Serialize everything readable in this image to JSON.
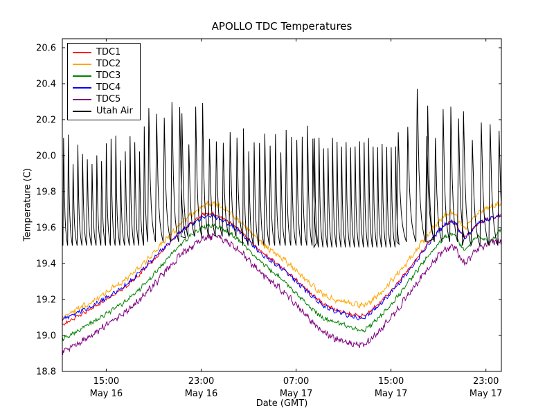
{
  "chart_data": {
    "type": "line",
    "title": "APOLLO TDC Temperatures",
    "xlabel": "Date (GMT)",
    "ylabel": "Temperature (C)",
    "x_unit": "hours since May 16 00:00 GMT",
    "x_range_hours": [
      11.3,
      48.3
    ],
    "ylim": [
      18.8,
      20.65
    ],
    "grid": false,
    "legend_position": "upper left",
    "axis_color": "#000000",
    "background_color": "#ffffff",
    "yticks": [
      {
        "label": "18.8",
        "value": 18.8
      },
      {
        "label": "19.0",
        "value": 19.0
      },
      {
        "label": "19.2",
        "value": 19.2
      },
      {
        "label": "19.4",
        "value": 19.4
      },
      {
        "label": "19.6",
        "value": 19.6
      },
      {
        "label": "19.8",
        "value": 19.8
      },
      {
        "label": "20.0",
        "value": 20.0
      },
      {
        "label": "20.2",
        "value": 20.2
      },
      {
        "label": "20.4",
        "value": 20.4
      },
      {
        "label": "20.6",
        "value": 20.6
      }
    ],
    "xticks": [
      {
        "time": "15:00",
        "date": "May 16",
        "value": 15
      },
      {
        "time": "23:00",
        "date": "May 16",
        "value": 23
      },
      {
        "time": "07:00",
        "date": "May 17",
        "value": 31
      },
      {
        "time": "15:00",
        "date": "May 17",
        "value": 39
      },
      {
        "time": "23:00",
        "date": "May 17",
        "value": 47
      }
    ],
    "series": [
      {
        "name": "TDC1",
        "color": "#ff0000",
        "noise": 0.008,
        "points": [
          [
            11.3,
            19.06
          ],
          [
            13,
            19.12
          ],
          [
            15,
            19.2
          ],
          [
            17,
            19.29
          ],
          [
            19,
            19.42
          ],
          [
            21,
            19.56
          ],
          [
            22.5,
            19.64
          ],
          [
            23.5,
            19.68
          ],
          [
            24.5,
            19.66
          ],
          [
            26,
            19.6
          ],
          [
            28,
            19.47
          ],
          [
            30,
            19.37
          ],
          [
            32,
            19.25
          ],
          [
            33.5,
            19.17
          ],
          [
            35,
            19.13
          ],
          [
            36.5,
            19.11
          ],
          [
            37.5,
            19.15
          ],
          [
            39,
            19.25
          ],
          [
            40.5,
            19.37
          ],
          [
            42,
            19.5
          ],
          [
            43.3,
            19.6
          ],
          [
            44.3,
            19.63
          ],
          [
            45.2,
            19.55
          ],
          [
            46.3,
            19.62
          ],
          [
            47.3,
            19.65
          ],
          [
            48.3,
            19.67
          ]
        ]
      },
      {
        "name": "TDC2",
        "color": "#ffa500",
        "noise": 0.013,
        "points": [
          [
            11.3,
            19.1
          ],
          [
            13,
            19.16
          ],
          [
            15,
            19.24
          ],
          [
            17,
            19.33
          ],
          [
            19,
            19.46
          ],
          [
            21,
            19.6
          ],
          [
            22.5,
            19.69
          ],
          [
            23.5,
            19.73
          ],
          [
            24.5,
            19.72
          ],
          [
            26,
            19.65
          ],
          [
            28,
            19.52
          ],
          [
            30,
            19.42
          ],
          [
            32,
            19.3
          ],
          [
            33.5,
            19.22
          ],
          [
            35,
            19.19
          ],
          [
            36.5,
            19.17
          ],
          [
            37.5,
            19.2
          ],
          [
            39,
            19.3
          ],
          [
            40.5,
            19.42
          ],
          [
            42,
            19.55
          ],
          [
            43.3,
            19.65
          ],
          [
            44.3,
            19.68
          ],
          [
            45.2,
            19.6
          ],
          [
            46.3,
            19.68
          ],
          [
            47.3,
            19.71
          ],
          [
            48.3,
            19.74
          ]
        ]
      },
      {
        "name": "TDC3",
        "color": "#008000",
        "noise": 0.01,
        "points": [
          [
            11.3,
            18.98
          ],
          [
            13,
            19.04
          ],
          [
            15,
            19.12
          ],
          [
            17,
            19.21
          ],
          [
            19,
            19.34
          ],
          [
            21,
            19.49
          ],
          [
            22.5,
            19.57
          ],
          [
            23.5,
            19.61
          ],
          [
            24.5,
            19.6
          ],
          [
            26,
            19.54
          ],
          [
            28,
            19.41
          ],
          [
            30,
            19.3
          ],
          [
            32,
            19.17
          ],
          [
            33.5,
            19.09
          ],
          [
            35,
            19.06
          ],
          [
            36.5,
            19.03
          ],
          [
            37.5,
            19.07
          ],
          [
            39,
            19.17
          ],
          [
            40.5,
            19.3
          ],
          [
            42,
            19.43
          ],
          [
            43.3,
            19.53
          ],
          [
            44.3,
            19.56
          ],
          [
            45.2,
            19.48
          ],
          [
            46.3,
            19.55
          ],
          [
            47.3,
            19.52
          ],
          [
            48.3,
            19.6
          ]
        ]
      },
      {
        "name": "TDC4",
        "color": "#0000ff",
        "noise": 0.01,
        "points": [
          [
            11.3,
            19.09
          ],
          [
            13,
            19.14
          ],
          [
            15,
            19.21
          ],
          [
            17,
            19.3
          ],
          [
            19,
            19.43
          ],
          [
            21,
            19.56
          ],
          [
            22.5,
            19.63
          ],
          [
            23.5,
            19.67
          ],
          [
            24.5,
            19.65
          ],
          [
            26,
            19.59
          ],
          [
            28,
            19.46
          ],
          [
            30,
            19.36
          ],
          [
            32,
            19.24
          ],
          [
            33.5,
            19.16
          ],
          [
            35,
            19.12
          ],
          [
            36.5,
            19.1
          ],
          [
            37.5,
            19.14
          ],
          [
            39,
            19.24
          ],
          [
            40.5,
            19.36
          ],
          [
            42,
            19.49
          ],
          [
            43.3,
            19.6
          ],
          [
            44.3,
            19.63
          ],
          [
            45.2,
            19.55
          ],
          [
            46.3,
            19.62
          ],
          [
            47.3,
            19.65
          ],
          [
            48.3,
            19.67
          ]
        ]
      },
      {
        "name": "TDC5",
        "color": "#800080",
        "noise": 0.016,
        "points": [
          [
            11.3,
            18.91
          ],
          [
            13,
            18.97
          ],
          [
            15,
            19.06
          ],
          [
            17,
            19.15
          ],
          [
            19,
            19.28
          ],
          [
            21,
            19.43
          ],
          [
            22.5,
            19.51
          ],
          [
            23.5,
            19.55
          ],
          [
            24.5,
            19.54
          ],
          [
            26,
            19.48
          ],
          [
            28,
            19.35
          ],
          [
            30,
            19.24
          ],
          [
            32,
            19.1
          ],
          [
            33.5,
            19.01
          ],
          [
            35,
            18.97
          ],
          [
            36.5,
            18.95
          ],
          [
            37.5,
            18.99
          ],
          [
            39,
            19.1
          ],
          [
            40.5,
            19.23
          ],
          [
            42,
            19.36
          ],
          [
            43.3,
            19.46
          ],
          [
            44.3,
            19.49
          ],
          [
            45.2,
            19.41
          ],
          [
            46.3,
            19.48
          ],
          [
            47.3,
            19.51
          ],
          [
            48.3,
            19.53
          ]
        ]
      },
      {
        "name": "Utah Air",
        "color": "#000000",
        "generator": "sawtooth",
        "segment_fields": [
          "t_start",
          "t_end",
          "period_h",
          "low_C",
          "peak_min_C",
          "peak_max_C"
        ],
        "segments": [
          [
            11.35,
            18.5,
            0.4,
            19.5,
            19.95,
            20.17
          ],
          [
            18.5,
            21.3,
            0.65,
            19.52,
            20.15,
            20.41
          ],
          [
            21.3,
            26.5,
            0.58,
            19.55,
            20.05,
            20.3
          ],
          [
            26.5,
            32.5,
            0.45,
            19.5,
            20.0,
            20.17
          ],
          [
            32.5,
            39.5,
            0.38,
            19.49,
            20.04,
            20.1
          ],
          [
            39.5,
            42,
            0.8,
            19.52,
            20.1,
            20.38
          ],
          [
            42,
            45,
            0.65,
            19.52,
            20.05,
            20.28
          ],
          [
            45,
            48.3,
            0.75,
            19.5,
            20.08,
            20.25
          ]
        ]
      }
    ]
  }
}
